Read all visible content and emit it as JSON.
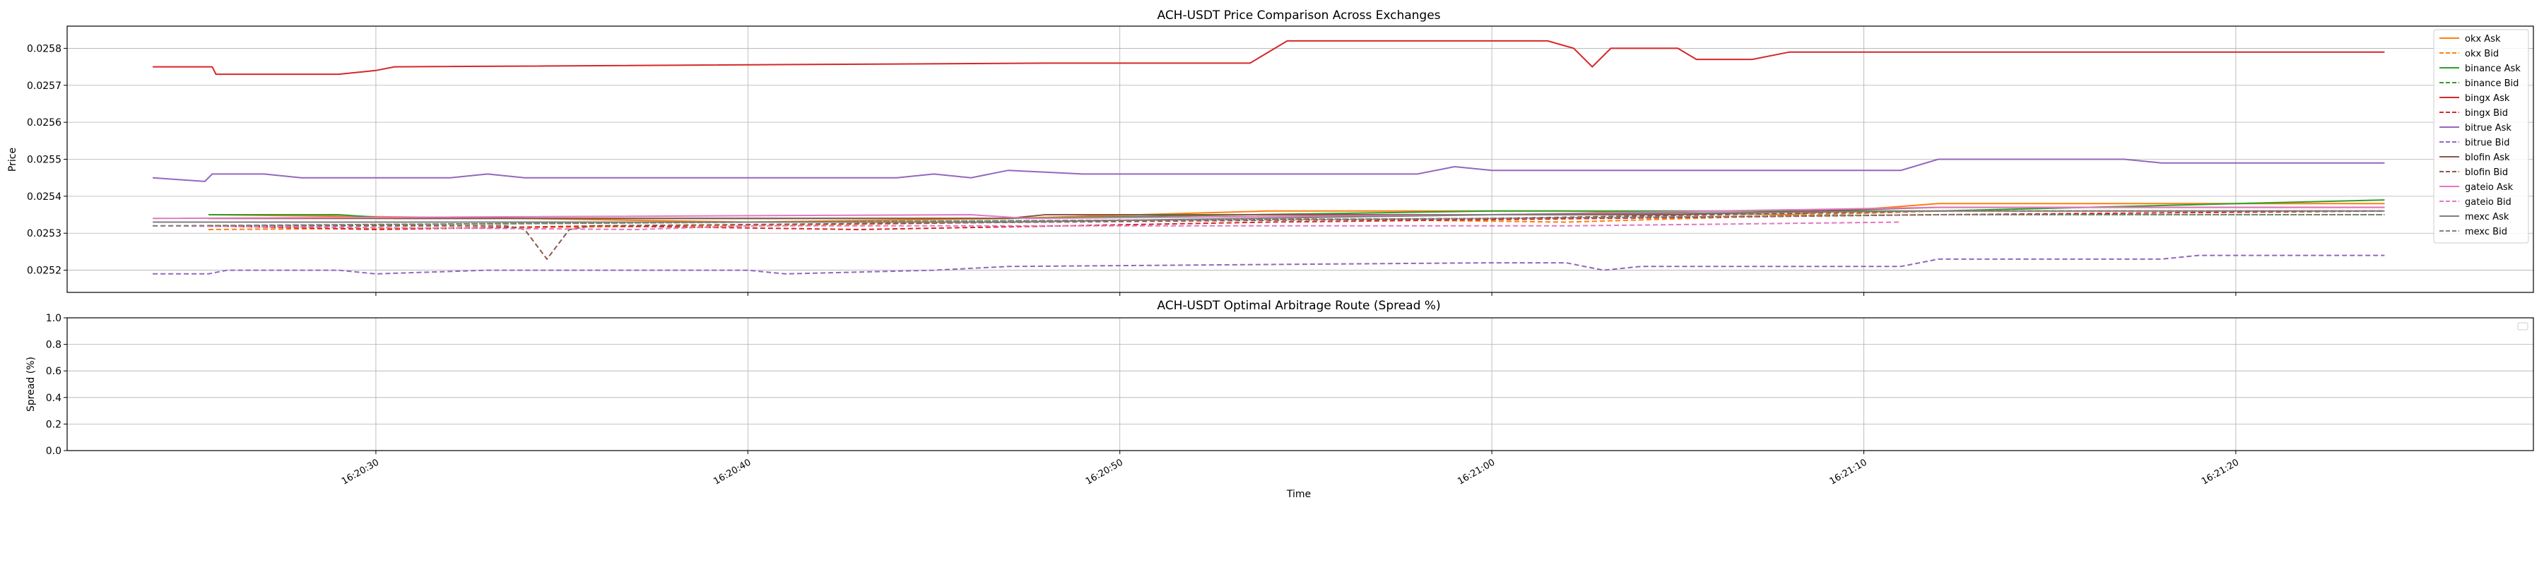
{
  "chart_data": [
    {
      "type": "line",
      "title": "ACH-USDT Price Comparison Across Exchanges",
      "xlabel": "",
      "ylabel": "Price",
      "xlim": [
        "16:20:21.7",
        "16:21:28.0"
      ],
      "ylim": [
        0.02514,
        0.02586
      ],
      "yticks": [
        "0.0252",
        "0.0253",
        "0.0254",
        "0.0255",
        "0.0256",
        "0.0257",
        "0.0258"
      ],
      "grid": true,
      "legend_position": "upper-right",
      "series": [
        {
          "name": "okx Ask",
          "color": "#ff7f0e",
          "dash": false,
          "points": [
            [
              "16:20:25.5",
              0.02535
            ],
            [
              "16:20:34.0",
              0.02534
            ],
            [
              "16:20:40.0",
              0.02533
            ],
            [
              "16:20:47.0",
              0.02534
            ],
            [
              "16:20:54.0",
              0.02536
            ],
            [
              "16:21:02.0",
              0.02536
            ],
            [
              "16:21:08.0",
              0.02535
            ],
            [
              "16:21:12.0",
              0.02538
            ],
            [
              "16:21:24.0",
              0.02538
            ]
          ]
        },
        {
          "name": "okx Bid",
          "color": "#ff7f0e",
          "dash": true,
          "points": [
            [
              "16:20:25.5",
              0.02531
            ],
            [
              "16:20:40.0",
              0.02532
            ],
            [
              "16:20:54.0",
              0.02534
            ],
            [
              "16:21:02.0",
              0.02533
            ],
            [
              "16:21:12.0",
              0.02536
            ],
            [
              "16:21:24.0",
              0.02536
            ]
          ]
        },
        {
          "name": "binance Ask",
          "color": "#2ca02c",
          "dash": false,
          "points": [
            [
              "16:20:25.5",
              0.02535
            ],
            [
              "16:20:29.0",
              0.02535
            ],
            [
              "16:20:30.5",
              0.02534
            ],
            [
              "16:20:40.0",
              0.02534
            ],
            [
              "16:20:47.0",
              0.02534
            ],
            [
              "16:21:00.0",
              0.02536
            ],
            [
              "16:21:12.0",
              0.02536
            ],
            [
              "16:21:24.0",
              0.02539
            ]
          ]
        },
        {
          "name": "binance Bid",
          "color": "#2ca02c",
          "dash": true,
          "points": [
            [
              "16:20:25.5",
              0.02532
            ],
            [
              "16:20:40.0",
              0.02533
            ],
            [
              "16:21:00.0",
              0.02534
            ],
            [
              "16:21:12.0",
              0.02535
            ],
            [
              "16:21:24.0",
              0.02535
            ]
          ]
        },
        {
          "name": "bingx Ask",
          "color": "#d62728",
          "dash": false,
          "points": [
            [
              "16:20:24.0",
              0.02575
            ],
            [
              "16:20:25.6",
              0.02575
            ],
            [
              "16:20:25.7",
              0.02573
            ],
            [
              "16:20:29.0",
              0.02573
            ],
            [
              "16:20:30.0",
              0.02574
            ],
            [
              "16:20:30.5",
              0.02575
            ],
            [
              "16:20:48.0",
              0.02576
            ],
            [
              "16:20:53.5",
              0.02576
            ],
            [
              "16:20:54.5",
              0.02582
            ],
            [
              "16:21:01.5",
              0.02582
            ],
            [
              "16:21:02.2",
              0.0258
            ],
            [
              "16:21:02.7",
              0.02575
            ],
            [
              "16:21:03.2",
              0.0258
            ],
            [
              "16:21:05.0",
              0.0258
            ],
            [
              "16:21:05.5",
              0.02577
            ],
            [
              "16:21:07.0",
              0.02577
            ],
            [
              "16:21:08.0",
              0.02579
            ],
            [
              "16:21:24.0",
              0.02579
            ]
          ]
        },
        {
          "name": "bingx Bid",
          "color": "#d62728",
          "dash": true,
          "points": [
            [
              "16:20:25.5",
              0.02532
            ],
            [
              "16:20:30.0",
              0.02531
            ],
            [
              "16:20:36.0",
              0.02532
            ],
            [
              "16:20:43.0",
              0.02531
            ],
            [
              "16:20:54.0",
              0.02533
            ],
            [
              "16:21:12.0",
              0.02535
            ],
            [
              "16:21:24.0",
              0.02536
            ]
          ]
        },
        {
          "name": "bitrue Ask",
          "color": "#9467bd",
          "dash": false,
          "points": [
            [
              "16:20:24.0",
              0.02545
            ],
            [
              "16:20:25.4",
              0.02544
            ],
            [
              "16:20:25.6",
              0.02546
            ],
            [
              "16:20:27.0",
              0.02546
            ],
            [
              "16:20:28.0",
              0.02545
            ],
            [
              "16:20:32.0",
              0.02545
            ],
            [
              "16:20:33.0",
              0.02546
            ],
            [
              "16:20:34.0",
              0.02545
            ],
            [
              "16:20:44.0",
              0.02545
            ],
            [
              "16:20:45.0",
              0.02546
            ],
            [
              "16:20:46.0",
              0.02545
            ],
            [
              "16:20:47.0",
              0.02547
            ],
            [
              "16:20:49.0",
              0.02546
            ],
            [
              "16:20:58.0",
              0.02546
            ],
            [
              "16:20:59.0",
              0.02548
            ],
            [
              "16:21:00.0",
              0.02547
            ],
            [
              "16:21:11.0",
              0.02547
            ],
            [
              "16:21:12.0",
              0.0255
            ],
            [
              "16:21:17.0",
              0.0255
            ],
            [
              "16:21:18.0",
              0.02549
            ],
            [
              "16:21:24.0",
              0.02549
            ]
          ]
        },
        {
          "name": "bitrue Bid",
          "color": "#9467bd",
          "dash": true,
          "points": [
            [
              "16:20:24.0",
              0.02519
            ],
            [
              "16:20:25.5",
              0.02519
            ],
            [
              "16:20:26.0",
              0.0252
            ],
            [
              "16:20:29.0",
              0.0252
            ],
            [
              "16:20:30.0",
              0.02519
            ],
            [
              "16:20:33.0",
              0.0252
            ],
            [
              "16:20:40.0",
              0.0252
            ],
            [
              "16:20:41.0",
              0.02519
            ],
            [
              "16:20:45.0",
              0.0252
            ],
            [
              "16:20:47.0",
              0.02521
            ],
            [
              "16:21:00.0",
              0.02522
            ],
            [
              "16:21:02.0",
              0.02522
            ],
            [
              "16:21:03.0",
              0.0252
            ],
            [
              "16:21:04.0",
              0.02521
            ],
            [
              "16:21:11.0",
              0.02521
            ],
            [
              "16:21:12.0",
              0.02523
            ],
            [
              "16:21:18.0",
              0.02523
            ],
            [
              "16:21:19.0",
              0.02524
            ],
            [
              "16:21:24.0",
              0.02524
            ]
          ]
        },
        {
          "name": "blofin Ask",
          "color": "#8c564b",
          "dash": false,
          "points": [
            [
              "16:20:25.5",
              0.02534
            ],
            [
              "16:20:40.0",
              0.02534
            ],
            [
              "16:20:47.0",
              0.02534
            ],
            [
              "16:20:48.0",
              0.02535
            ],
            [
              "16:21:05.0",
              0.02535
            ],
            [
              "16:21:12.0",
              0.02537
            ],
            [
              "16:21:24.0",
              0.02537
            ]
          ]
        },
        {
          "name": "blofin Bid",
          "color": "#8c564b",
          "dash": true,
          "points": [
            [
              "16:20:25.5",
              0.02532
            ],
            [
              "16:20:33.5",
              0.02532
            ],
            [
              "16:20:34.0",
              0.02531
            ],
            [
              "16:20:34.6",
              0.02523
            ],
            [
              "16:20:35.2",
              0.02531
            ],
            [
              "16:20:35.8",
              0.02532
            ],
            [
              "16:21:00.0",
              0.02534
            ],
            [
              "16:21:12.0",
              0.02536
            ],
            [
              "16:21:24.0",
              0.02536
            ]
          ]
        },
        {
          "name": "gateio Ask",
          "color": "#e377c2",
          "dash": false,
          "points": [
            [
              "16:20:24.0",
              0.02534
            ],
            [
              "16:20:46.0",
              0.02535
            ],
            [
              "16:20:47.5",
              0.02534
            ],
            [
              "16:21:00.0",
              0.02535
            ],
            [
              "16:21:12.0",
              0.02537
            ],
            [
              "16:21:24.0",
              0.02537
            ]
          ]
        },
        {
          "name": "gateio Bid",
          "color": "#e377c2",
          "dash": true,
          "points": [
            [
              "16:20:24.0",
              0.02532
            ],
            [
              "16:20:37.0",
              0.02531
            ],
            [
              "16:20:40.0",
              0.02532
            ],
            [
              "16:21:02.0",
              0.02532
            ],
            [
              "16:21:11.0",
              0.02533
            ]
          ]
        },
        {
          "name": "mexc Ask",
          "color": "#7f7f7f",
          "dash": false,
          "points": [
            [
              "16:20:24.0",
              0.02533
            ],
            [
              "16:20:40.0",
              0.02533
            ],
            [
              "16:20:47.0",
              0.02533
            ],
            [
              "16:21:00.0",
              0.02535
            ],
            [
              "16:21:12.0",
              0.02536
            ],
            [
              "16:21:24.0",
              0.02536
            ]
          ]
        },
        {
          "name": "mexc Bid",
          "color": "#7f7f7f",
          "dash": true,
          "points": [
            [
              "16:20:24.0",
              0.02532
            ],
            [
              "16:20:40.0",
              0.02533
            ],
            [
              "16:21:00.0",
              0.02534
            ],
            [
              "16:21:12.0",
              0.02535
            ],
            [
              "16:21:24.0",
              0.02535
            ]
          ]
        }
      ]
    },
    {
      "type": "line",
      "title": "ACH-USDT Optimal Arbitrage Route (Spread %)",
      "xlabel": "Time",
      "ylabel": "Spread (%)",
      "xlim": [
        "16:20:21.7",
        "16:21:28.0"
      ],
      "ylim": [
        0.0,
        1.0
      ],
      "yticks": [
        "0.0",
        "0.2",
        "0.4",
        "0.6",
        "0.8",
        "1.0"
      ],
      "xticks": [
        "16:20:30",
        "16:20:40",
        "16:20:50",
        "16:21:00",
        "16:21:10",
        "16:21:20"
      ],
      "grid": true,
      "legend_position": "upper-right",
      "series": []
    }
  ]
}
